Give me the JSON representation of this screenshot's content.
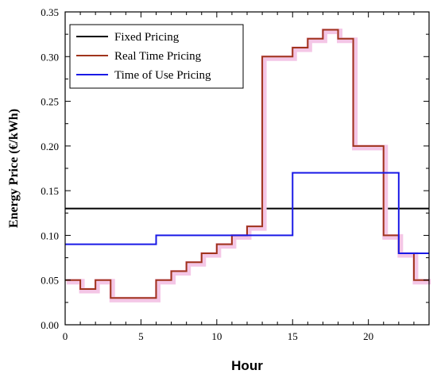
{
  "chart_data": {
    "type": "line",
    "xlabel": "Hour",
    "ylabel": "Energy Price (€/kWh)",
    "xlim": [
      0,
      24
    ],
    "ylim": [
      0,
      0.35
    ],
    "xticks": [
      0,
      5,
      10,
      15,
      20
    ],
    "xtick_labels": [
      "0",
      "5",
      "10",
      "15",
      "20"
    ],
    "yticks": [
      0,
      0.05,
      0.1,
      0.15,
      0.2,
      0.25,
      0.3,
      0.35
    ],
    "ytick_labels": [
      "0.00",
      "0.05",
      "0.10",
      "0.15",
      "0.20",
      "0.25",
      "0.30",
      "0.35"
    ],
    "grid": false,
    "legend_position": "top-left",
    "series": [
      {
        "name": "Fixed Pricing",
        "color": "#000000",
        "step": "post",
        "x": [
          0,
          24
        ],
        "y": [
          0.13,
          0.13
        ]
      },
      {
        "name": "Real Time Pricing",
        "color": "#a0341c",
        "glow": "#f4c6e6",
        "step": "post",
        "x": [
          0,
          1,
          2,
          3,
          4,
          5,
          6,
          7,
          8,
          9,
          10,
          11,
          12,
          13,
          14,
          15,
          16,
          17,
          18,
          19,
          20,
          21,
          22,
          23,
          24
        ],
        "y": [
          0.05,
          0.04,
          0.05,
          0.03,
          0.03,
          0.03,
          0.05,
          0.06,
          0.07,
          0.08,
          0.09,
          0.1,
          0.11,
          0.3,
          0.3,
          0.31,
          0.32,
          0.33,
          0.32,
          0.2,
          0.2,
          0.1,
          0.08,
          0.05,
          0.05
        ]
      },
      {
        "name": "Time of Use Pricing",
        "color": "#1a1ae6",
        "step": "post",
        "x": [
          0,
          6,
          15,
          22,
          24
        ],
        "y": [
          0.09,
          0.1,
          0.17,
          0.08,
          0.08
        ]
      }
    ]
  }
}
